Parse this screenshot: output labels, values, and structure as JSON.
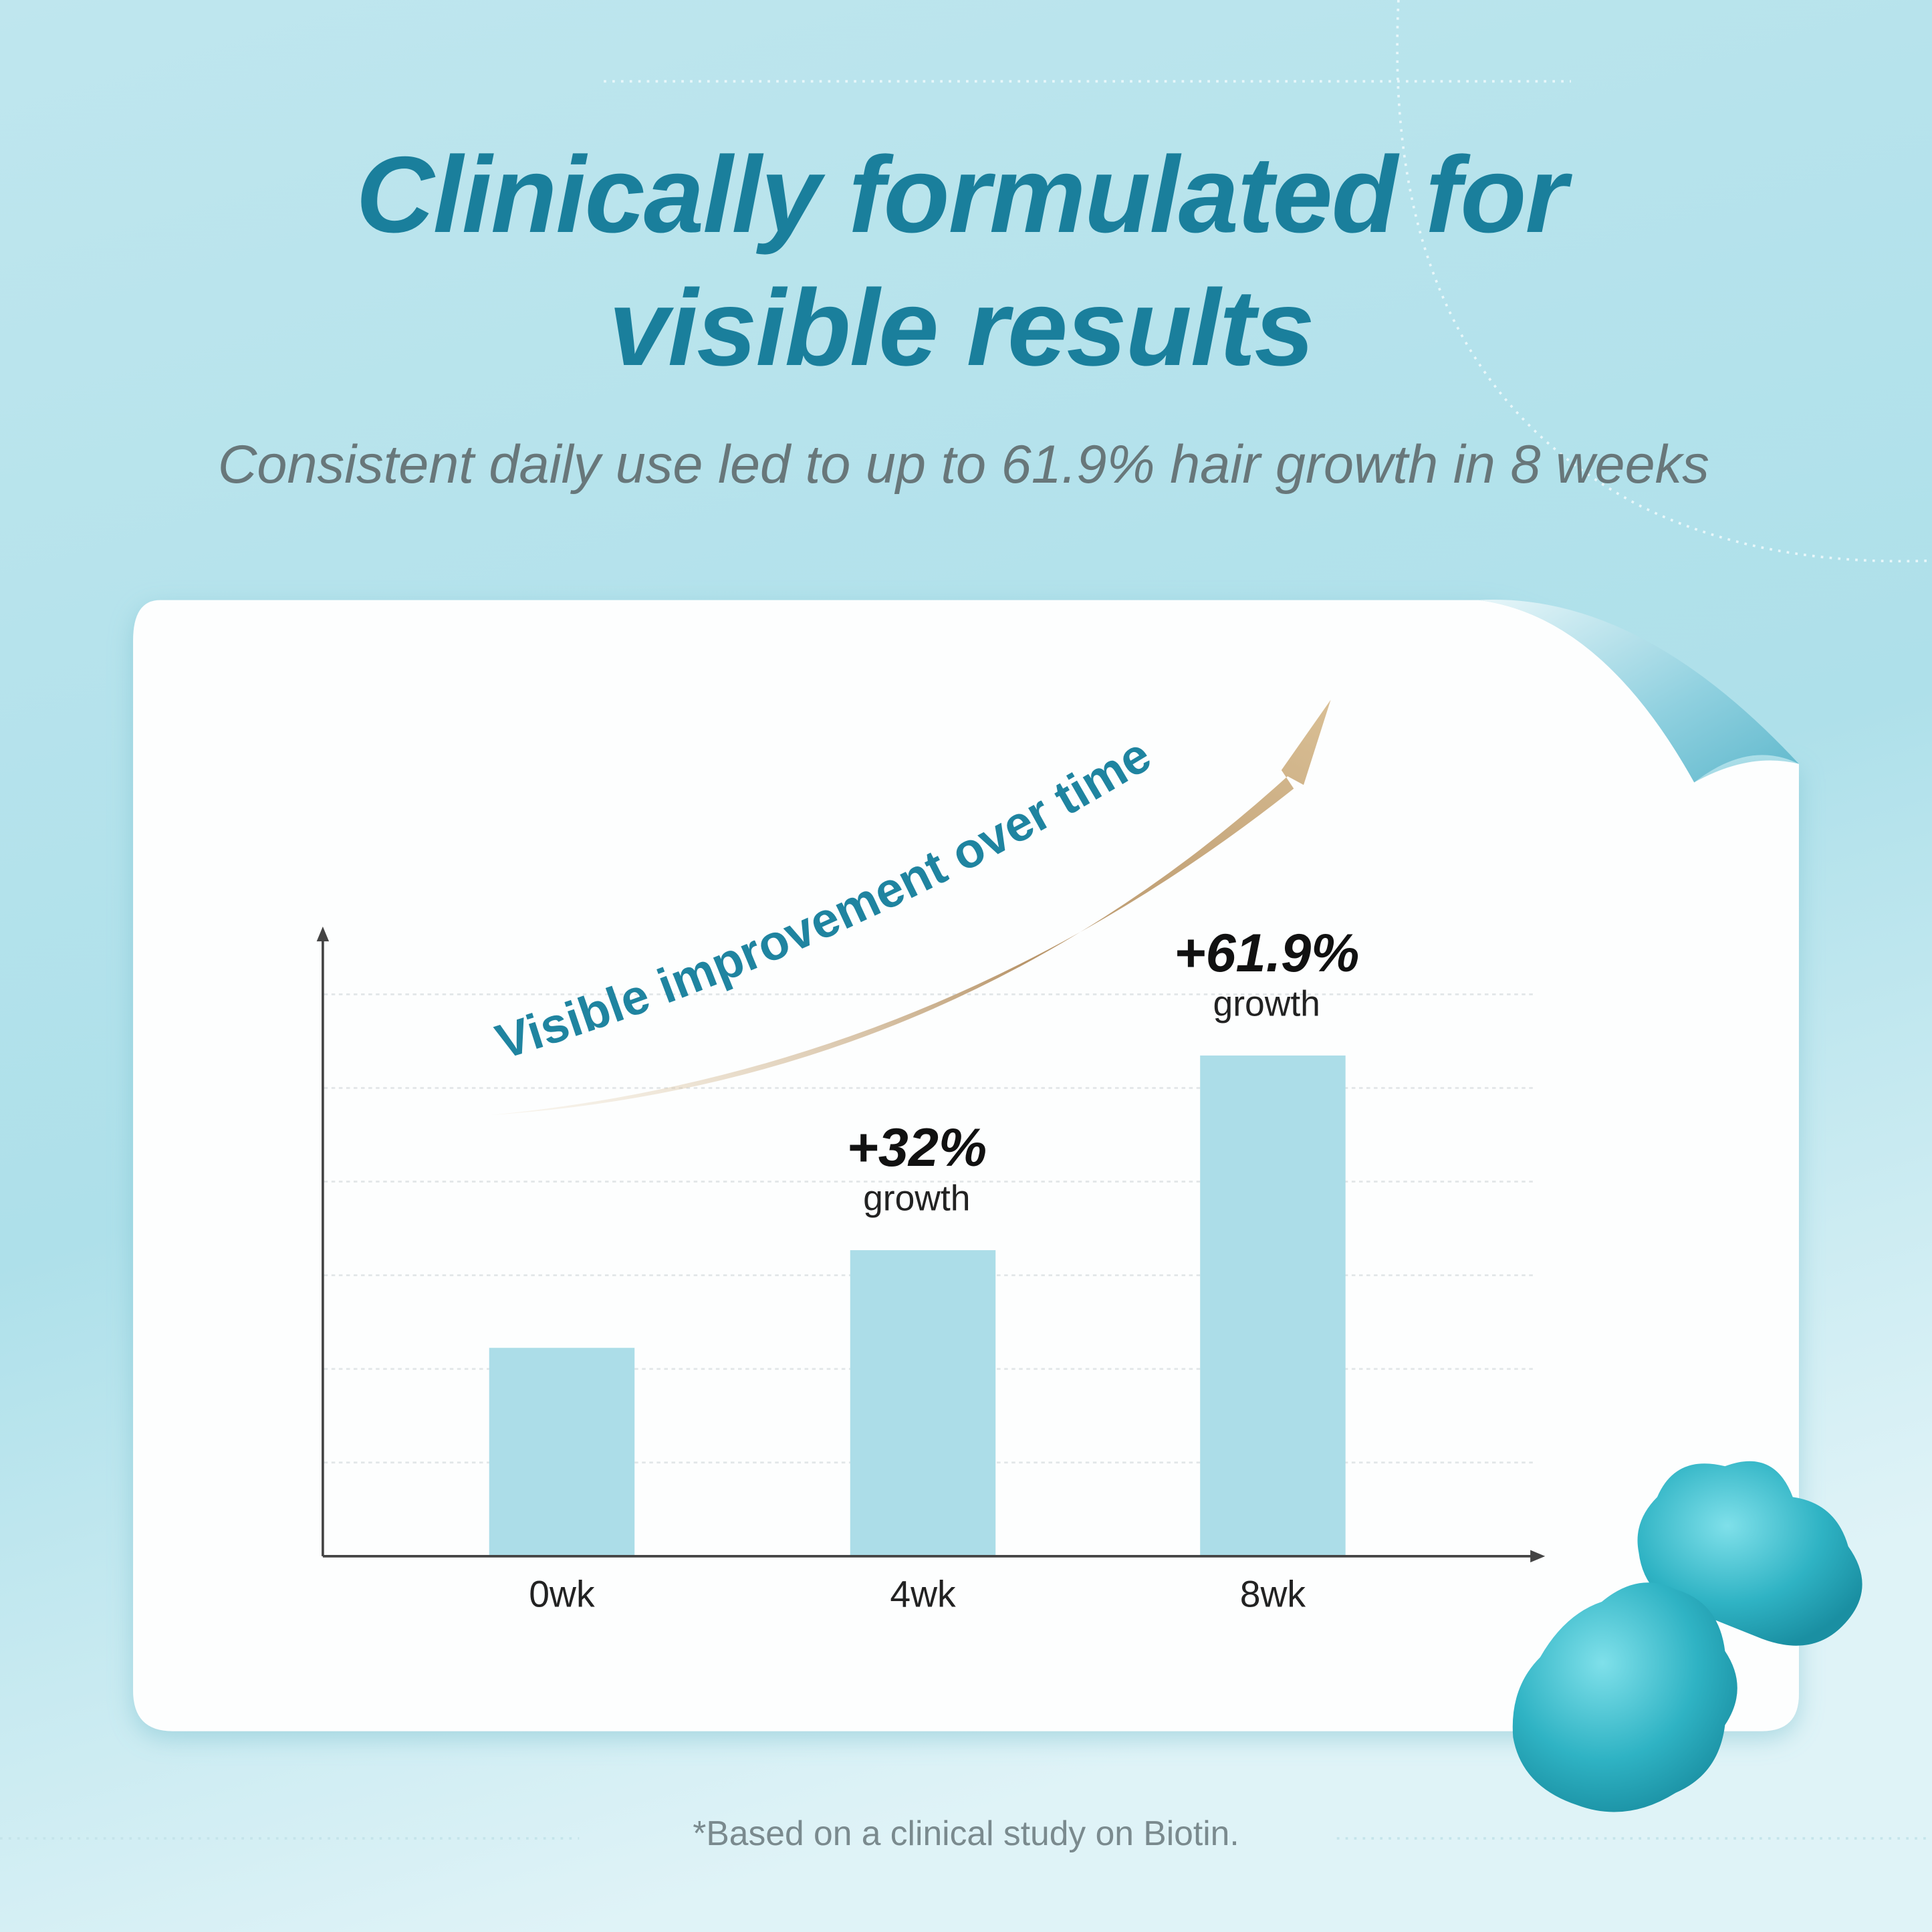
{
  "chart_data": {
    "type": "bar",
    "title": [
      "Clinically formulated for",
      "visible results"
    ],
    "subtitle": "Consistent daily use led to up to 61.9% hair growth in 8 weeks",
    "annotation": "Visible improvement over time",
    "categories": [
      "0wk",
      "4wk",
      "8wk"
    ],
    "values": [
      17,
      32,
      61.9
    ],
    "value_labels": [
      null,
      "+32%",
      "+61.9%"
    ],
    "value_notes": [
      null,
      "growth",
      "growth"
    ],
    "color": "#acdde8",
    "ylim": [
      -15,
      80
    ],
    "footnote": "*Based on a clinical study on Biotin."
  }
}
